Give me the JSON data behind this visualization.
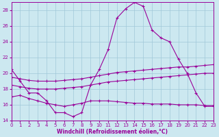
{
  "xlabel": "Windchill (Refroidissement éolien,°C)",
  "ylabel": "",
  "background_color": "#cce8f0",
  "grid_color": "#a0c8d8",
  "line_color": "#990099",
  "xlim": [
    0,
    23
  ],
  "ylim": [
    14,
    29
  ],
  "yticks": [
    14,
    16,
    18,
    20,
    22,
    24,
    26,
    28
  ],
  "xticks": [
    0,
    1,
    2,
    3,
    4,
    5,
    6,
    7,
    8,
    9,
    10,
    11,
    12,
    13,
    14,
    15,
    16,
    17,
    18,
    19,
    20,
    21,
    22,
    23
  ],
  "hours": [
    0,
    1,
    2,
    3,
    4,
    5,
    6,
    7,
    8,
    9,
    10,
    11,
    12,
    13,
    14,
    15,
    16,
    17,
    18,
    19,
    20,
    21,
    22,
    23
  ],
  "windchill": [
    20.5,
    19.0,
    17.5,
    17.5,
    16.5,
    15.0,
    15.0,
    14.5,
    15.0,
    18.5,
    20.5,
    23.0,
    27.0,
    28.2,
    29.0,
    28.5,
    25.5,
    24.5,
    24.0,
    21.8,
    20.0,
    17.5,
    15.8,
    15.8
  ],
  "line1": [
    19.5,
    19.3,
    19.1,
    19.0,
    19.0,
    19.0,
    19.1,
    19.2,
    19.3,
    19.5,
    19.7,
    19.9,
    20.1,
    20.2,
    20.3,
    20.4,
    20.5,
    20.6,
    20.7,
    20.8,
    20.8,
    20.9,
    21.0,
    21.1
  ],
  "line2": [
    18.5,
    18.3,
    18.1,
    18.0,
    18.0,
    18.0,
    18.1,
    18.2,
    18.3,
    18.5,
    18.7,
    18.9,
    19.0,
    19.1,
    19.2,
    19.3,
    19.4,
    19.5,
    19.6,
    19.7,
    19.8,
    19.9,
    20.0,
    20.0
  ],
  "line3": [
    17.0,
    17.2,
    16.8,
    16.5,
    16.2,
    16.0,
    15.8,
    16.0,
    16.2,
    16.5,
    16.5,
    16.5,
    16.4,
    16.3,
    16.2,
    16.2,
    16.1,
    16.1,
    16.1,
    16.0,
    16.0,
    16.0,
    15.9,
    15.9
  ]
}
